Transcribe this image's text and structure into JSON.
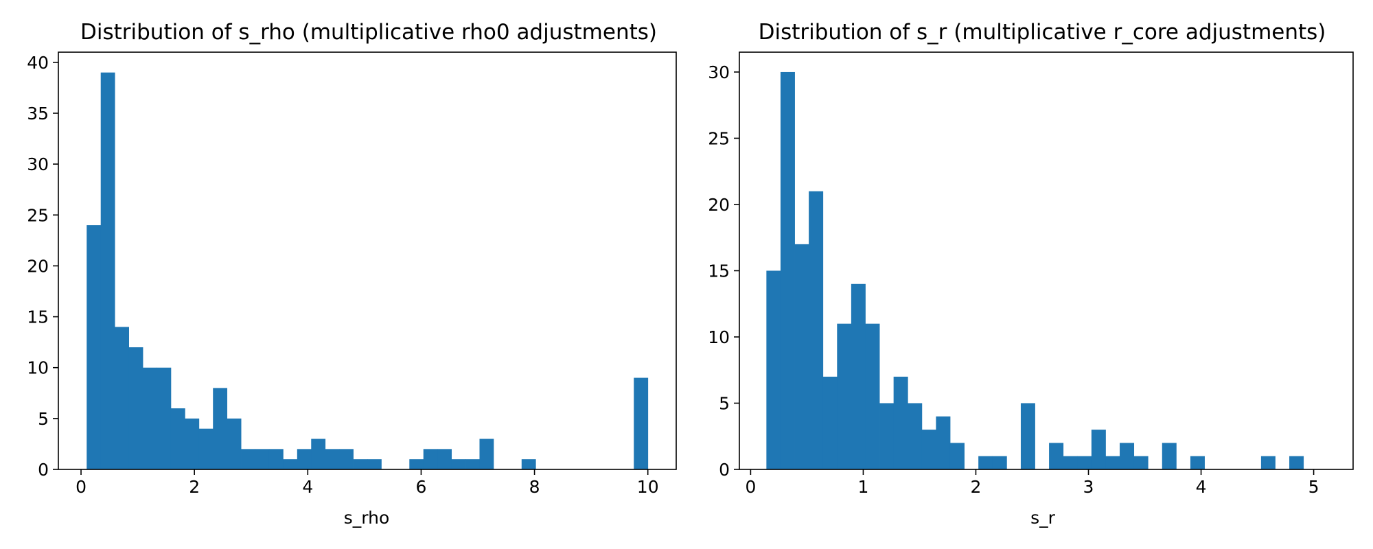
{
  "chart_data": [
    {
      "type": "bar",
      "title": "Distribution of s_rho (multiplicative rho0 adjustments)",
      "xlabel": "s_rho",
      "ylabel": "",
      "xlim": [
        -0.4,
        10.5
      ],
      "ylim": [
        0,
        41
      ],
      "xticks": [
        0,
        2,
        4,
        6,
        8,
        10
      ],
      "yticks": [
        0,
        5,
        10,
        15,
        20,
        25,
        30,
        35,
        40
      ],
      "bin_start": 0.1,
      "bin_width": 0.2475,
      "counts": [
        24,
        39,
        14,
        12,
        10,
        10,
        6,
        5,
        4,
        8,
        5,
        2,
        2,
        2,
        1,
        2,
        3,
        2,
        2,
        1,
        1,
        0,
        0,
        1,
        2,
        2,
        1,
        1,
        3,
        0,
        0,
        1,
        0,
        0,
        0,
        0,
        0,
        0,
        0,
        9
      ],
      "color": "#1f77b4",
      "grid": false,
      "legend": false
    },
    {
      "type": "bar",
      "title": "Distribution of s_r (multiplicative r_core adjustments)",
      "xlabel": "s_r",
      "ylabel": "",
      "xlim": [
        -0.1,
        5.35
      ],
      "ylim": [
        0,
        31.5
      ],
      "xticks": [
        0,
        1,
        2,
        3,
        4,
        5
      ],
      "yticks": [
        0,
        5,
        10,
        15,
        20,
        25,
        30
      ],
      "bin_start": 0.14,
      "bin_width": 0.1255,
      "counts": [
        15,
        30,
        17,
        21,
        7,
        11,
        14,
        11,
        5,
        7,
        5,
        3,
        4,
        2,
        0,
        1,
        1,
        0,
        5,
        0,
        2,
        1,
        1,
        3,
        1,
        2,
        1,
        0,
        2,
        0,
        1,
        0,
        0,
        0,
        0,
        1,
        0,
        1
      ],
      "color": "#1f77b4",
      "grid": false,
      "legend": false
    }
  ]
}
